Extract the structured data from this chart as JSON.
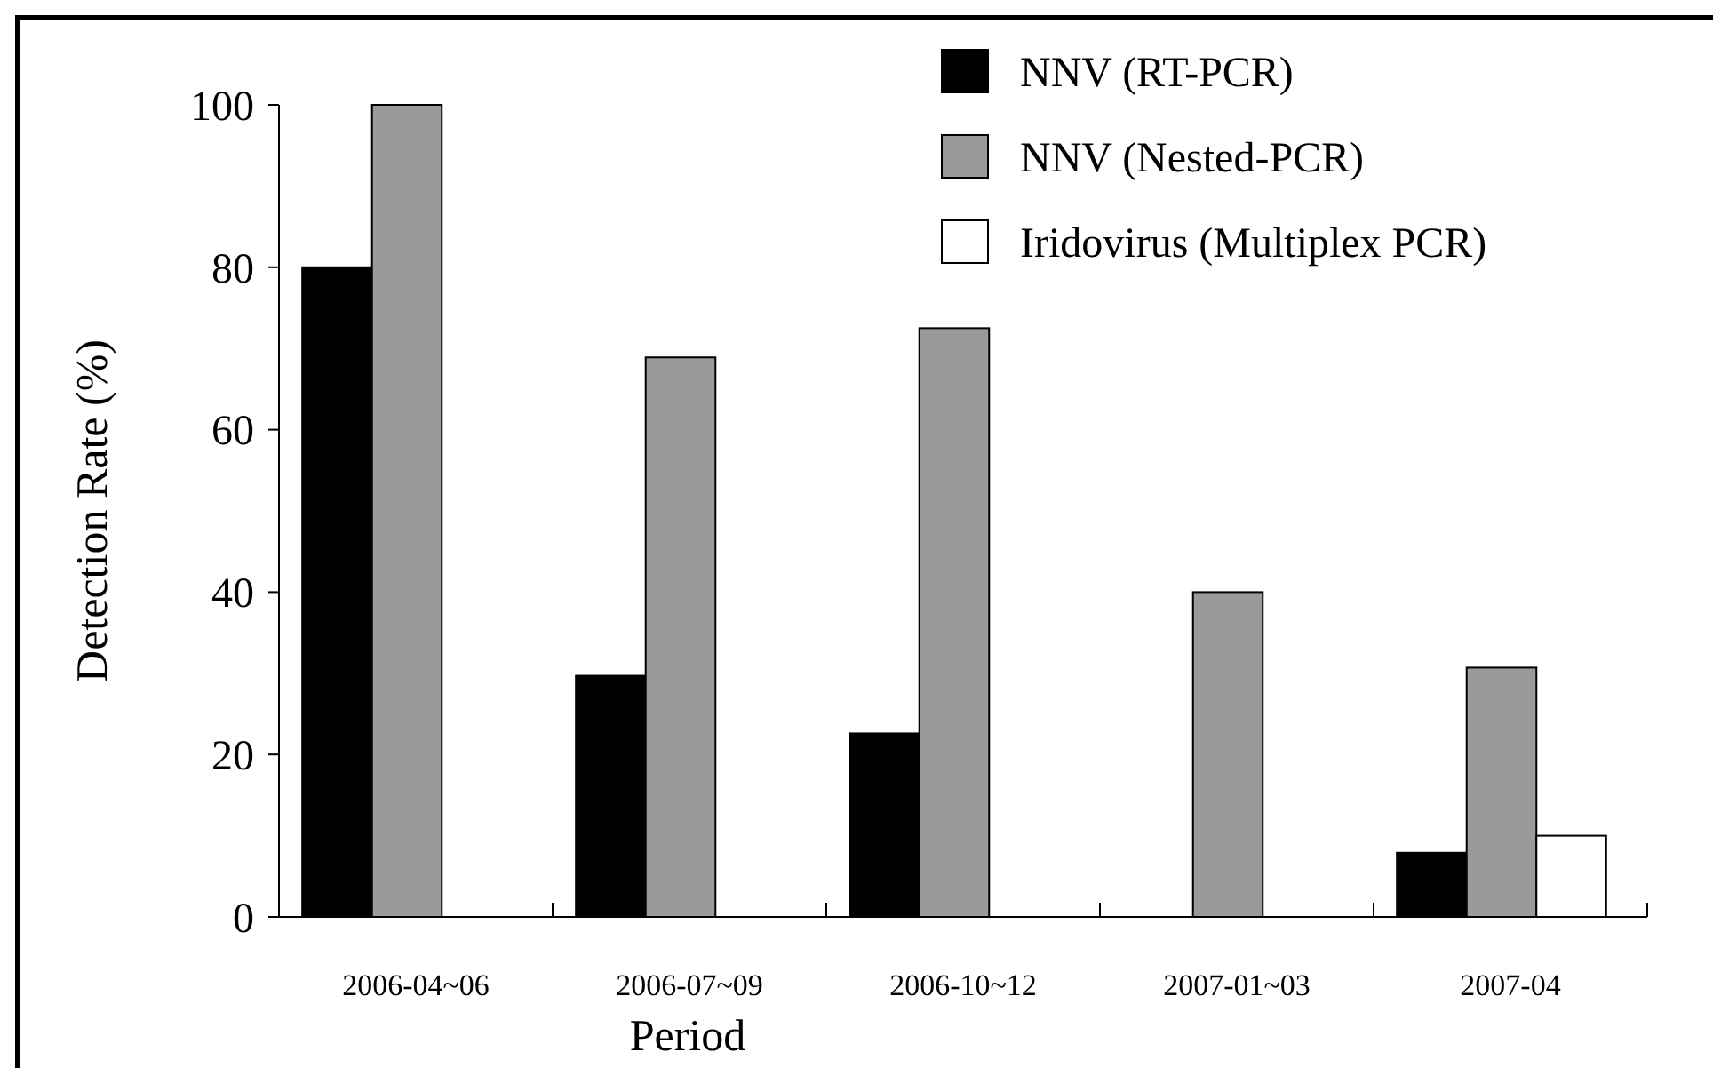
{
  "chart_data": {
    "type": "bar",
    "xlabel": "Period",
    "ylabel": "Detection Rate (%)",
    "categories": [
      "2006-04~06",
      "2006-07~09",
      "2006-10~12",
      "2007-01~03",
      "2007-04"
    ],
    "series": [
      {
        "name": "NNV (RT-PCR)",
        "color": "#000000",
        "values": [
          80,
          29.7,
          22.6,
          null,
          7.9
        ]
      },
      {
        "name": "NNV (Nested-PCR)",
        "color": "#9a9a9a",
        "values": [
          100,
          68.9,
          72.5,
          40.0,
          30.7
        ]
      },
      {
        "name": "Iridovirus (Multiplex PCR)",
        "color": "#ffffff",
        "values": [
          null,
          null,
          null,
          null,
          10.0
        ]
      }
    ],
    "ylim": [
      0,
      100
    ],
    "yticks": [
      0,
      20,
      40,
      60,
      80,
      100
    ],
    "legend": "top right"
  }
}
